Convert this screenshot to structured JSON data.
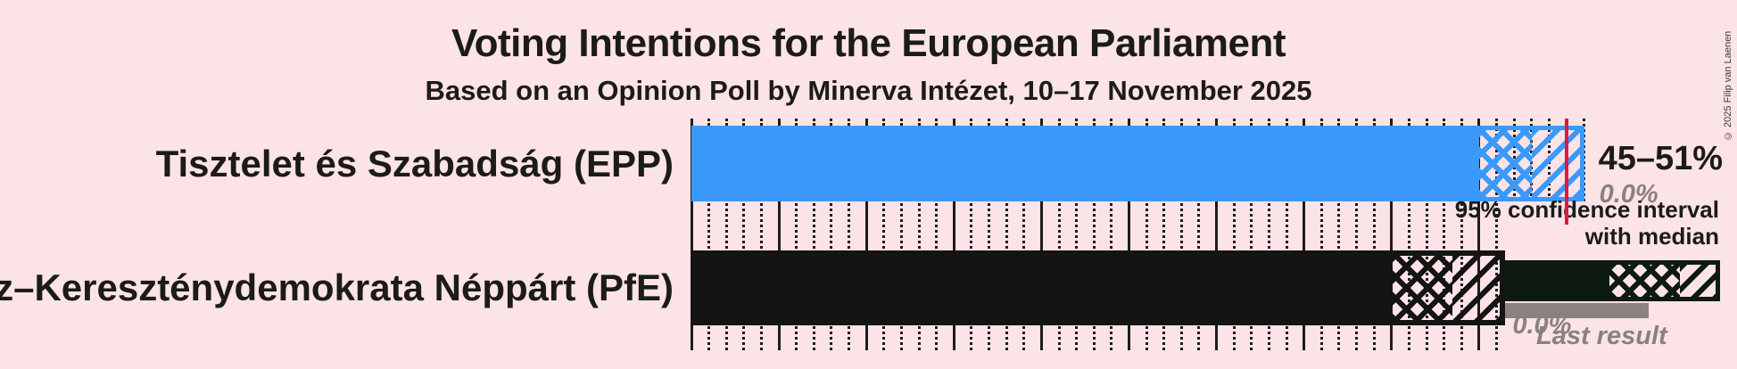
{
  "title": "Voting Intentions for the European Parliament",
  "subtitle": "Based on an Opinion Poll by Minerva Intézet, 10–17 November 2025",
  "copyright": "© 2025 Filip van Laenen",
  "legend": {
    "ci_line1": "95% confidence interval",
    "ci_line2": "with median",
    "last_result_label": "Last result"
  },
  "colors": {
    "background": "#fce3e8",
    "epp_blue": "#3b99fb",
    "pfe_black": "#141412",
    "legend_green": "#0d1a10",
    "gray": "#8b8181",
    "majority_red": "#dc1a3e",
    "text": "#1b1b18"
  },
  "chart_data": {
    "type": "bar",
    "orientation": "horizontal",
    "unit": "percent of voting intentions",
    "x_axis": {
      "min": 0,
      "max": 51,
      "major_gridline_step": 5,
      "minor_gridline_step": 1,
      "gridlines": "on"
    },
    "majority_line_pct": 50,
    "parties": [
      {
        "label": "Tisztelet és Szabadság (EPP)",
        "color": "#3b99fb",
        "ci_low": 45,
        "median": 48,
        "ci_high": 51,
        "ci_text": "45–51%",
        "last_result": 0.0,
        "last_result_text": "0.0%"
      },
      {
        "label": "Fidesz–Kereszténydemokrata Néppárt (PfE)",
        "color": "#141412",
        "ci_low": 40,
        "median": 43.5,
        "ci_high": 46.5,
        "ci_text": "",
        "last_result": 0.0,
        "last_result_text": "0.0%"
      }
    ]
  }
}
